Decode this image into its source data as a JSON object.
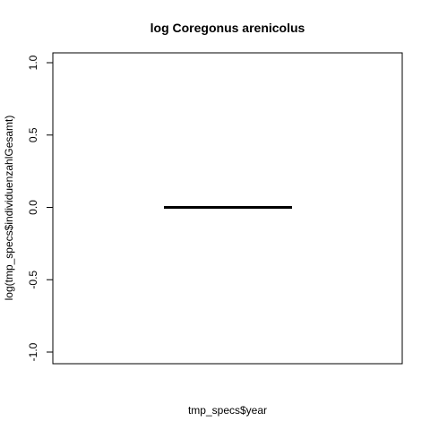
{
  "chart_data": {
    "type": "box",
    "title": "log Coregonus arenicolus",
    "xlabel": "tmp_specs$year",
    "ylabel": "log(tmp_specs$individuenzahlGesamt)",
    "ylim": [
      -1.0,
      1.0
    ],
    "yticks": [
      -1.0,
      -0.5,
      0.0,
      0.5,
      1.0
    ],
    "ytick_labels": [
      "-1.0",
      "-0.5",
      "0.0",
      "0.5",
      "1.0"
    ],
    "box": {
      "min": 0.0,
      "q1": 0.0,
      "median": 0.0,
      "q3": 0.0,
      "max": 0.0
    },
    "grid": false,
    "legend": "none"
  },
  "colors": {
    "axis": "#000000",
    "median_line": "#000000",
    "background": "#ffffff"
  }
}
